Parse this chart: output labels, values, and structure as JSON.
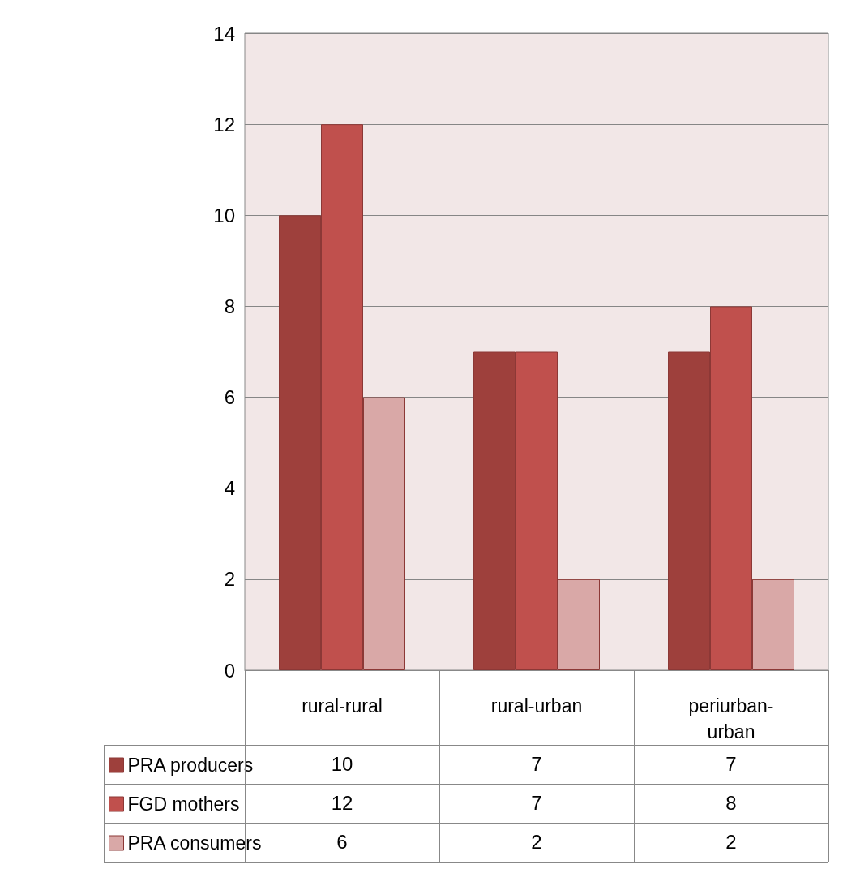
{
  "chart_data": {
    "type": "bar",
    "categories": [
      "rural-rural",
      "rural-urban",
      "periurban-urban"
    ],
    "series": [
      {
        "name": "PRA producers",
        "color": "#9e403c",
        "values": [
          10,
          7,
          7
        ]
      },
      {
        "name": "FGD mothers",
        "color": "#c0504d",
        "values": [
          12,
          7,
          8
        ]
      },
      {
        "name": "PRA consumers",
        "color": "#d9a8a7",
        "values": [
          6,
          2,
          2
        ]
      }
    ],
    "ylim": [
      0,
      14
    ],
    "yticks": [
      0,
      2,
      4,
      6,
      8,
      10,
      12,
      14
    ],
    "grid": "y",
    "legend": "bottom",
    "data_labels": true
  }
}
